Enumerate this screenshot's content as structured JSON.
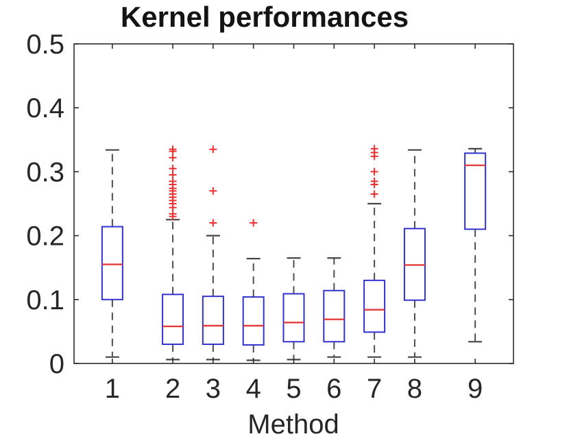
{
  "figure": {
    "title": "Kernel performances",
    "xlabel": "Method"
  },
  "chart_data": {
    "type": "boxplot",
    "title": "Kernel performances",
    "xlabel": "Method",
    "ylabel": "",
    "xlim": [
      0.05,
      10.95
    ],
    "ylim": [
      0,
      0.5
    ],
    "grid": false,
    "legend": "none",
    "y_ticks": [
      0,
      0.1,
      0.2,
      0.3,
      0.4,
      0.5
    ],
    "y_tick_labels": [
      "0",
      "0.1",
      "0.2",
      "0.3",
      "0.4",
      "0.5"
    ],
    "x_tick_labels": [
      "1",
      "2",
      "3",
      "4",
      "5",
      "6",
      "7",
      "8",
      "9"
    ],
    "colors": {
      "box": "#3232cf",
      "median": "#e23b3b",
      "whisker": "#4d4d4d",
      "cap": "#454545",
      "outlier": "#f03030",
      "axis": "#2b2b2b",
      "text": "#262626"
    },
    "boxes": [
      {
        "label": "1",
        "position": 1,
        "whisker_low": 0.01,
        "q1": 0.1,
        "median": 0.155,
        "q3": 0.214,
        "whisker_high": 0.334,
        "outliers": []
      },
      {
        "label": "2",
        "position": 2.5,
        "whisker_low": 0.006,
        "q1": 0.03,
        "median": 0.058,
        "q3": 0.108,
        "whisker_high": 0.225,
        "outliers": [
          0.335,
          0.332,
          0.322,
          0.305,
          0.295,
          0.285,
          0.28,
          0.274,
          0.27,
          0.265,
          0.26,
          0.255,
          0.25,
          0.244,
          0.234,
          0.23
        ]
      },
      {
        "label": "3",
        "position": 3.5,
        "whisker_low": 0.006,
        "q1": 0.03,
        "median": 0.059,
        "q3": 0.105,
        "whisker_high": 0.2,
        "outliers": [
          0.335,
          0.27,
          0.22
        ]
      },
      {
        "label": "4",
        "position": 4.5,
        "whisker_low": 0.005,
        "q1": 0.029,
        "median": 0.059,
        "q3": 0.104,
        "whisker_high": 0.164,
        "outliers": [
          0.22
        ]
      },
      {
        "label": "5",
        "position": 5.5,
        "whisker_low": 0.006,
        "q1": 0.034,
        "median": 0.064,
        "q3": 0.109,
        "whisker_high": 0.165,
        "outliers": []
      },
      {
        "label": "6",
        "position": 6.5,
        "whisker_low": 0.01,
        "q1": 0.034,
        "median": 0.069,
        "q3": 0.114,
        "whisker_high": 0.165,
        "outliers": []
      },
      {
        "label": "7",
        "position": 7.5,
        "whisker_low": 0.01,
        "q1": 0.049,
        "median": 0.084,
        "q3": 0.13,
        "whisker_high": 0.25,
        "outliers": [
          0.336,
          0.33,
          0.324,
          0.3,
          0.285,
          0.28,
          0.265
        ]
      },
      {
        "label": "8",
        "position": 8.5,
        "whisker_low": 0.01,
        "q1": 0.099,
        "median": 0.154,
        "q3": 0.211,
        "whisker_high": 0.334,
        "outliers": []
      },
      {
        "label": "9",
        "position": 10,
        "whisker_low": 0.034,
        "q1": 0.21,
        "median": 0.31,
        "q3": 0.329,
        "whisker_high": 0.336,
        "outliers": []
      }
    ]
  }
}
